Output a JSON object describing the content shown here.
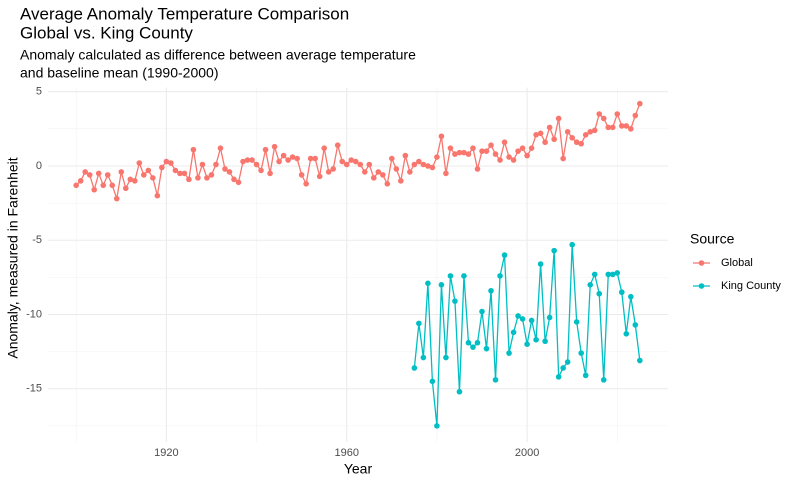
{
  "chart_data": {
    "type": "line",
    "title": [
      "Average Anomaly Temperature Comparison",
      "Global vs. King County"
    ],
    "subtitle": [
      "Anomaly calculated as difference between average temperature",
      "and baseline mean (1990-2000)"
    ],
    "x_label": "Year",
    "y_label": "Anomaly, measured in Farenheit",
    "legend_title": "Source",
    "legend_position": "right",
    "grid": true,
    "xlim": [
      1893.75,
      2031.25
    ],
    "xticks": [
      1920,
      1960,
      2000
    ],
    "xminor": [
      1900,
      1940,
      1980,
      2020
    ],
    "ylim": [
      -18.585,
      5.285
    ],
    "yticks": [
      -15,
      -10,
      -5,
      0,
      5
    ],
    "yminor": [
      -17.5,
      -12.5,
      -7.5,
      -2.5,
      2.5
    ],
    "series": [
      {
        "name": "Global",
        "color": "#F8766D",
        "x": [
          1900,
          1901,
          1902,
          1903,
          1904,
          1905,
          1906,
          1907,
          1908,
          1909,
          1910,
          1911,
          1912,
          1913,
          1914,
          1915,
          1916,
          1917,
          1918,
          1919,
          1920,
          1921,
          1922,
          1923,
          1924,
          1925,
          1926,
          1927,
          1928,
          1929,
          1930,
          1931,
          1932,
          1933,
          1934,
          1935,
          1936,
          1937,
          1938,
          1939,
          1940,
          1941,
          1942,
          1943,
          1944,
          1945,
          1946,
          1947,
          1948,
          1949,
          1950,
          1951,
          1952,
          1953,
          1954,
          1955,
          1956,
          1957,
          1958,
          1959,
          1960,
          1961,
          1962,
          1963,
          1964,
          1965,
          1966,
          1967,
          1968,
          1969,
          1970,
          1971,
          1972,
          1973,
          1974,
          1975,
          1976,
          1977,
          1978,
          1979,
          1980,
          1981,
          1982,
          1983,
          1984,
          1985,
          1986,
          1987,
          1988,
          1989,
          1990,
          1991,
          1992,
          1993,
          1994,
          1995,
          1996,
          1997,
          1998,
          1999,
          2000,
          2001,
          2002,
          2003,
          2004,
          2005,
          2006,
          2007,
          2008,
          2009,
          2010,
          2011,
          2012,
          2013,
          2014,
          2015,
          2016,
          2017,
          2018,
          2019,
          2020,
          2021,
          2022,
          2023,
          2024,
          2025
        ],
        "values": [
          -1.3,
          -1.0,
          -0.4,
          -0.6,
          -1.6,
          -0.5,
          -1.3,
          -0.6,
          -1.3,
          -2.2,
          -0.4,
          -1.5,
          -0.9,
          -1.0,
          0.2,
          -0.6,
          -0.3,
          -0.8,
          -2.0,
          -0.1,
          0.3,
          0.2,
          -0.3,
          -0.5,
          -0.5,
          -0.9,
          1.1,
          -0.8,
          0.1,
          -0.8,
          -0.6,
          0.1,
          1.2,
          -0.2,
          -0.4,
          -0.9,
          -1.1,
          0.3,
          0.4,
          0.4,
          0.1,
          -0.3,
          1.1,
          -0.5,
          1.3,
          0.3,
          0.7,
          0.4,
          0.6,
          0.5,
          -0.6,
          -1.2,
          0.5,
          0.5,
          -0.7,
          1.2,
          -0.4,
          -0.2,
          1.4,
          0.3,
          0.1,
          0.4,
          0.3,
          0.1,
          -0.4,
          0.1,
          -0.8,
          -0.4,
          -0.6,
          -1.2,
          0.5,
          -0.2,
          -1.0,
          0.7,
          -0.4,
          0.1,
          0.3,
          0.1,
          0.0,
          -0.1,
          0.6,
          2.0,
          -0.5,
          1.2,
          0.8,
          0.9,
          0.9,
          0.8,
          1.2,
          -0.2,
          1.0,
          1.0,
          1.4,
          0.8,
          0.4,
          1.6,
          0.6,
          0.4,
          1.0,
          1.2,
          0.7,
          1.2,
          2.1,
          2.2,
          1.6,
          2.6,
          1.8,
          3.2,
          0.5,
          2.3,
          1.9,
          1.6,
          1.5,
          2.1,
          2.3,
          2.4,
          3.5,
          3.2,
          2.6,
          2.6,
          3.5,
          2.7,
          2.7,
          2.5,
          3.4,
          4.2
        ]
      },
      {
        "name": "King County",
        "color": "#00BFC4",
        "x": [
          1975,
          1976,
          1977,
          1978,
          1979,
          1980,
          1981,
          1982,
          1983,
          1984,
          1985,
          1986,
          1987,
          1988,
          1989,
          1990,
          1991,
          1992,
          1993,
          1994,
          1995,
          1996,
          1997,
          1998,
          1999,
          2000,
          2001,
          2002,
          2003,
          2004,
          2005,
          2006,
          2007,
          2008,
          2009,
          2010,
          2011,
          2012,
          2013,
          2014,
          2015,
          2016,
          2017,
          2018,
          2019,
          2020,
          2021,
          2022,
          2023,
          2024,
          2025
        ],
        "values": [
          -13.6,
          -10.6,
          -12.9,
          -7.9,
          -14.5,
          -17.5,
          -8.0,
          -12.9,
          -7.4,
          -9.1,
          -15.2,
          -7.4,
          -11.9,
          -12.2,
          -11.9,
          -9.8,
          -12.3,
          -8.4,
          -14.4,
          -7.4,
          -6.0,
          -12.6,
          -11.2,
          -10.1,
          -10.3,
          -12.0,
          -10.4,
          -11.7,
          -6.6,
          -11.8,
          -10.2,
          -5.7,
          -14.2,
          -13.6,
          -13.2,
          -5.3,
          -10.5,
          -12.6,
          -14.1,
          -8.0,
          -7.3,
          -8.6,
          -14.4,
          -7.3,
          -7.3,
          -7.2,
          -8.5,
          -11.3,
          -8.8,
          -10.7,
          -13.1
        ]
      }
    ]
  }
}
